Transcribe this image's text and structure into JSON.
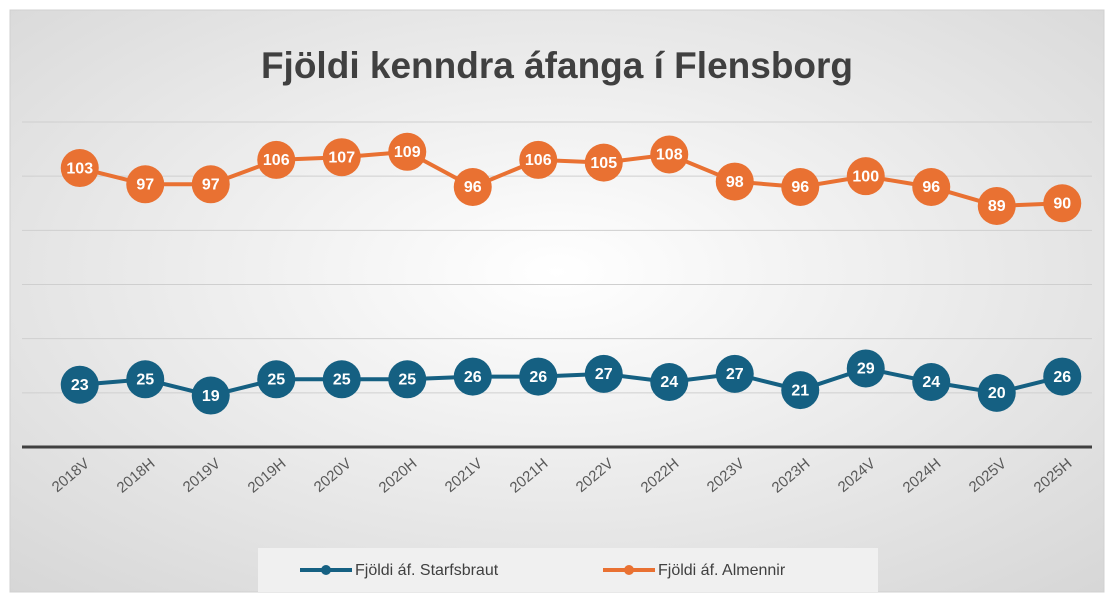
{
  "chart_data": {
    "type": "line",
    "title": "Fjöldi kenndra áfanga í Flensborg",
    "categories": [
      "2018V",
      "2018H",
      "2019V",
      "2019H",
      "2020V",
      "2020H",
      "2021V",
      "2021H",
      "2022V",
      "2022H",
      "2023V",
      "2023H",
      "2024V",
      "2024H",
      "2025V",
      "2025H"
    ],
    "series": [
      {
        "name": "Fjöldi áf. Starfsbraut",
        "color": "#156082",
        "values": [
          23,
          25,
          19,
          25,
          25,
          25,
          26,
          26,
          27,
          24,
          27,
          21,
          29,
          24,
          20,
          26
        ]
      },
      {
        "name": "Fjöldi áf. Almennir",
        "color": "#e97132",
        "values": [
          103,
          97,
          97,
          106,
          107,
          109,
          96,
          106,
          105,
          108,
          98,
          96,
          100,
          96,
          89,
          90
        ]
      }
    ],
    "ylim": [
      0,
      120
    ],
    "yticks": [
      0,
      20,
      40,
      60,
      80,
      100,
      120
    ],
    "grid": true,
    "legend": "bottom"
  }
}
